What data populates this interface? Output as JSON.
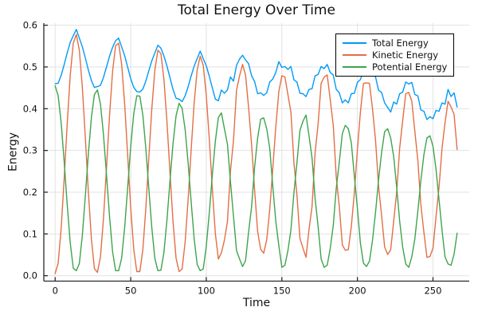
{
  "chart_data": {
    "type": "line",
    "title": "Total Energy Over Time",
    "xlabel": "Time",
    "ylabel": "Energy",
    "xlim": [
      -7.5,
      274
    ],
    "ylim": [
      -0.013,
      0.605
    ],
    "xtick_labels": [
      "0",
      "50",
      "100",
      "150",
      "200",
      "250"
    ],
    "xtick_values": [
      0,
      50,
      100,
      150,
      200,
      250
    ],
    "ytick_labels": [
      "0.0",
      "0.1",
      "0.2",
      "0.3",
      "0.4",
      "0.5",
      "0.6"
    ],
    "ytick_values": [
      0.0,
      0.1,
      0.2,
      0.3,
      0.4,
      0.5,
      0.6
    ],
    "grid": true,
    "legend_position": "top-right",
    "x": {
      "start": 0,
      "step": 2,
      "count": 134
    },
    "series": [
      {
        "name": "Total Energy",
        "color": "#009af9",
        "values": [
          0.46,
          0.461,
          0.48,
          0.506,
          0.534,
          0.559,
          0.575,
          0.59,
          0.569,
          0.548,
          0.521,
          0.492,
          0.467,
          0.451,
          0.453,
          0.456,
          0.475,
          0.5,
          0.526,
          0.547,
          0.563,
          0.569,
          0.548,
          0.527,
          0.499,
          0.472,
          0.451,
          0.441,
          0.44,
          0.447,
          0.466,
          0.491,
          0.515,
          0.534,
          0.552,
          0.545,
          0.526,
          0.502,
          0.474,
          0.446,
          0.425,
          0.423,
          0.417,
          0.431,
          0.453,
          0.479,
          0.502,
          0.52,
          0.538,
          0.52,
          0.503,
          0.478,
          0.45,
          0.423,
          0.419,
          0.445,
          0.437,
          0.445,
          0.476,
          0.466,
          0.504,
          0.519,
          0.528,
          0.517,
          0.508,
          0.479,
          0.465,
          0.436,
          0.438,
          0.432,
          0.438,
          0.464,
          0.471,
          0.487,
          0.513,
          0.499,
          0.501,
          0.494,
          0.501,
          0.469,
          0.464,
          0.437,
          0.436,
          0.429,
          0.446,
          0.448,
          0.479,
          0.482,
          0.501,
          0.496,
          0.506,
          0.487,
          0.481,
          0.446,
          0.438,
          0.414,
          0.421,
          0.414,
          0.436,
          0.437,
          0.463,
          0.47,
          0.491,
          0.484,
          0.496,
          0.484,
          0.476,
          0.444,
          0.439,
          0.414,
          0.403,
          0.392,
          0.416,
          0.411,
          0.436,
          0.44,
          0.464,
          0.459,
          0.463,
          0.434,
          0.431,
          0.397,
          0.394,
          0.374,
          0.381,
          0.376,
          0.396,
          0.394,
          0.414,
          0.411,
          0.446,
          0.429,
          0.438,
          0.404
        ]
      },
      {
        "name": "Kinetic Energy",
        "color": "#e26f46",
        "values": [
          0.005,
          0.03,
          0.114,
          0.234,
          0.365,
          0.481,
          0.557,
          0.578,
          0.54,
          0.45,
          0.328,
          0.198,
          0.087,
          0.017,
          0.008,
          0.045,
          0.137,
          0.259,
          0.384,
          0.489,
          0.551,
          0.557,
          0.506,
          0.411,
          0.287,
          0.162,
          0.063,
          0.01,
          0.01,
          0.062,
          0.16,
          0.282,
          0.401,
          0.493,
          0.54,
          0.532,
          0.47,
          0.368,
          0.246,
          0.129,
          0.042,
          0.01,
          0.016,
          0.081,
          0.184,
          0.303,
          0.413,
          0.493,
          0.526,
          0.504,
          0.433,
          0.328,
          0.209,
          0.101,
          0.04,
          0.055,
          0.085,
          0.13,
          0.251,
          0.324,
          0.444,
          0.479,
          0.506,
          0.481,
          0.404,
          0.314,
          0.205,
          0.106,
          0.063,
          0.054,
          0.086,
          0.159,
          0.256,
          0.357,
          0.441,
          0.479,
          0.476,
          0.434,
          0.391,
          0.269,
          0.194,
          0.089,
          0.066,
          0.044,
          0.111,
          0.166,
          0.294,
          0.364,
          0.461,
          0.476,
          0.481,
          0.422,
          0.361,
          0.236,
          0.166,
          0.074,
          0.061,
          0.062,
          0.118,
          0.199,
          0.301,
          0.392,
          0.461,
          0.462,
          0.461,
          0.399,
          0.324,
          0.214,
          0.144,
          0.069,
          0.051,
          0.062,
          0.131,
          0.199,
          0.306,
          0.372,
          0.436,
          0.439,
          0.418,
          0.346,
          0.276,
          0.169,
          0.104,
          0.044,
          0.046,
          0.066,
          0.141,
          0.212,
          0.306,
          0.366,
          0.418,
          0.404,
          0.386,
          0.302
        ]
      },
      {
        "name": "Potential Energy",
        "color": "#3da44d",
        "values": [
          0.455,
          0.431,
          0.366,
          0.272,
          0.169,
          0.078,
          0.018,
          0.012,
          0.029,
          0.098,
          0.193,
          0.294,
          0.38,
          0.434,
          0.445,
          0.411,
          0.338,
          0.241,
          0.142,
          0.058,
          0.012,
          0.012,
          0.042,
          0.116,
          0.212,
          0.31,
          0.388,
          0.431,
          0.43,
          0.385,
          0.306,
          0.209,
          0.114,
          0.041,
          0.012,
          0.013,
          0.056,
          0.134,
          0.228,
          0.317,
          0.383,
          0.413,
          0.401,
          0.35,
          0.269,
          0.176,
          0.089,
          0.027,
          0.012,
          0.016,
          0.07,
          0.15,
          0.241,
          0.322,
          0.379,
          0.39,
          0.352,
          0.315,
          0.225,
          0.142,
          0.06,
          0.04,
          0.022,
          0.036,
          0.104,
          0.165,
          0.26,
          0.33,
          0.375,
          0.378,
          0.352,
          0.305,
          0.215,
          0.13,
          0.072,
          0.02,
          0.025,
          0.06,
          0.11,
          0.2,
          0.27,
          0.348,
          0.37,
          0.385,
          0.335,
          0.282,
          0.185,
          0.118,
          0.04,
          0.02,
          0.025,
          0.065,
          0.12,
          0.21,
          0.272,
          0.34,
          0.36,
          0.352,
          0.318,
          0.238,
          0.162,
          0.078,
          0.03,
          0.022,
          0.035,
          0.085,
          0.152,
          0.23,
          0.295,
          0.345,
          0.352,
          0.33,
          0.285,
          0.212,
          0.13,
          0.068,
          0.028,
          0.02,
          0.045,
          0.088,
          0.155,
          0.228,
          0.29,
          0.33,
          0.335,
          0.31,
          0.255,
          0.182,
          0.108,
          0.045,
          0.028,
          0.025,
          0.052,
          0.102
        ]
      }
    ]
  }
}
